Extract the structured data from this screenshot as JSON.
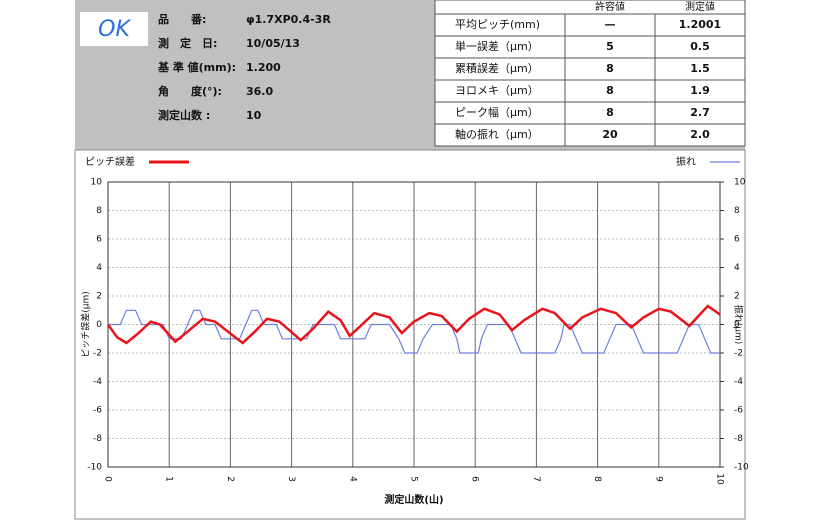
{
  "status": "OK",
  "info": [
    {
      "label": "品　　番:",
      "value": "φ1.7XP0.4-3R"
    },
    {
      "label": "測　定　日:",
      "value": "10/05/13"
    },
    {
      "label": "基 準 値(mm):",
      "value": "1.200"
    },
    {
      "label": "角　　度(°):",
      "value": "36.0"
    },
    {
      "label": "測定山数 :",
      "value": "10"
    }
  ],
  "table": {
    "header": [
      "許容値",
      "測定値"
    ],
    "rows": [
      [
        "平均ピッチ(mm)",
        "—",
        "1.2001"
      ],
      [
        "単一誤差（μm）",
        "5",
        "0.5"
      ],
      [
        "累積誤差（μm）",
        "8",
        "1.5"
      ],
      [
        "ヨロメキ（μm）",
        "8",
        "1.9"
      ],
      [
        "ピーク幅（μm）",
        "8",
        "2.7"
      ],
      [
        "軸の振れ（μm）",
        "20",
        "2.0"
      ]
    ]
  },
  "chart_data": {
    "type": "line",
    "x_label": "測定山数(山)",
    "y_label": "ピッチ誤差(μm)",
    "y2_label": "振れ(μm)",
    "xlim": [
      0,
      10
    ],
    "xticks": [
      0,
      1,
      2,
      3,
      4,
      5,
      6,
      7,
      8,
      9,
      10
    ],
    "ylim": [
      -10,
      10
    ],
    "yticks": [
      -10,
      -8,
      -6,
      -4,
      -2,
      0,
      2,
      4,
      6,
      8,
      10
    ],
    "y2lim": [
      -10,
      10
    ],
    "y2ticks": [
      -10,
      -8,
      -6,
      -4,
      -2,
      0,
      2,
      4,
      6,
      8,
      10
    ],
    "grid": true,
    "series": [
      {
        "name": "ピッチ誤差",
        "color": "#e8141a",
        "x": [
          0,
          0.15,
          0.3,
          0.5,
          0.7,
          0.85,
          1.1,
          1.3,
          1.55,
          1.75,
          2.2,
          2.4,
          2.6,
          2.8,
          3.15,
          3.35,
          3.6,
          3.8,
          3.95,
          4.1,
          4.35,
          4.6,
          4.8,
          5.0,
          5.25,
          5.45,
          5.7,
          5.9,
          6.15,
          6.4,
          6.6,
          6.8,
          7.1,
          7.3,
          7.55,
          7.75,
          8.05,
          8.3,
          8.55,
          8.75,
          9.0,
          9.2,
          9.5,
          9.65,
          9.8,
          10.0
        ],
        "values": [
          0,
          -0.9,
          -1.3,
          -0.6,
          0.2,
          0.0,
          -1.2,
          -0.5,
          0.4,
          0.2,
          -1.3,
          -0.5,
          0.4,
          0.2,
          -1.1,
          -0.3,
          0.9,
          0.3,
          -0.8,
          -0.2,
          0.8,
          0.5,
          -0.6,
          0.2,
          0.8,
          0.6,
          -0.5,
          0.4,
          1.1,
          0.7,
          -0.4,
          0.3,
          1.1,
          0.8,
          -0.3,
          0.5,
          1.1,
          0.8,
          -0.2,
          0.5,
          1.1,
          0.9,
          -0.1,
          0.6,
          1.3,
          0.7
        ]
      },
      {
        "name": "振れ",
        "color": "#6f7fe0",
        "axis": "y2",
        "x": [
          0,
          0.2,
          0.3,
          0.45,
          0.55,
          0.9,
          1.0,
          1.2,
          1.3,
          1.4,
          1.5,
          1.6,
          1.75,
          1.85,
          2.15,
          2.25,
          2.35,
          2.45,
          2.55,
          2.75,
          2.85,
          3.25,
          3.35,
          3.7,
          3.8,
          4.2,
          4.3,
          4.6,
          4.75,
          4.85,
          5.05,
          5.15,
          5.3,
          5.6,
          5.7,
          5.75,
          6.05,
          6.1,
          6.2,
          6.55,
          6.65,
          6.75,
          7.3,
          7.4,
          7.45,
          7.55,
          7.65,
          7.75,
          8.1,
          8.2,
          8.3,
          8.55,
          8.65,
          8.75,
          9.3,
          9.4,
          9.5,
          9.65,
          9.75,
          9.85,
          10
        ],
        "values": [
          0,
          0,
          1,
          1,
          0,
          0,
          -1,
          -1,
          0,
          1,
          1,
          0,
          0,
          -1,
          -1,
          0,
          1,
          1,
          0,
          0,
          -1,
          -1,
          0,
          0,
          -1,
          -1,
          0,
          0,
          -1,
          -2,
          -2,
          -1,
          0,
          0,
          -1,
          -2,
          -2,
          -1,
          0,
          0,
          -1,
          -2,
          -2,
          -1,
          0,
          0,
          -1,
          -2,
          -2,
          -1,
          0,
          0,
          -1,
          -2,
          -2,
          -1,
          0,
          0,
          -1,
          -2,
          -2
        ]
      }
    ]
  }
}
